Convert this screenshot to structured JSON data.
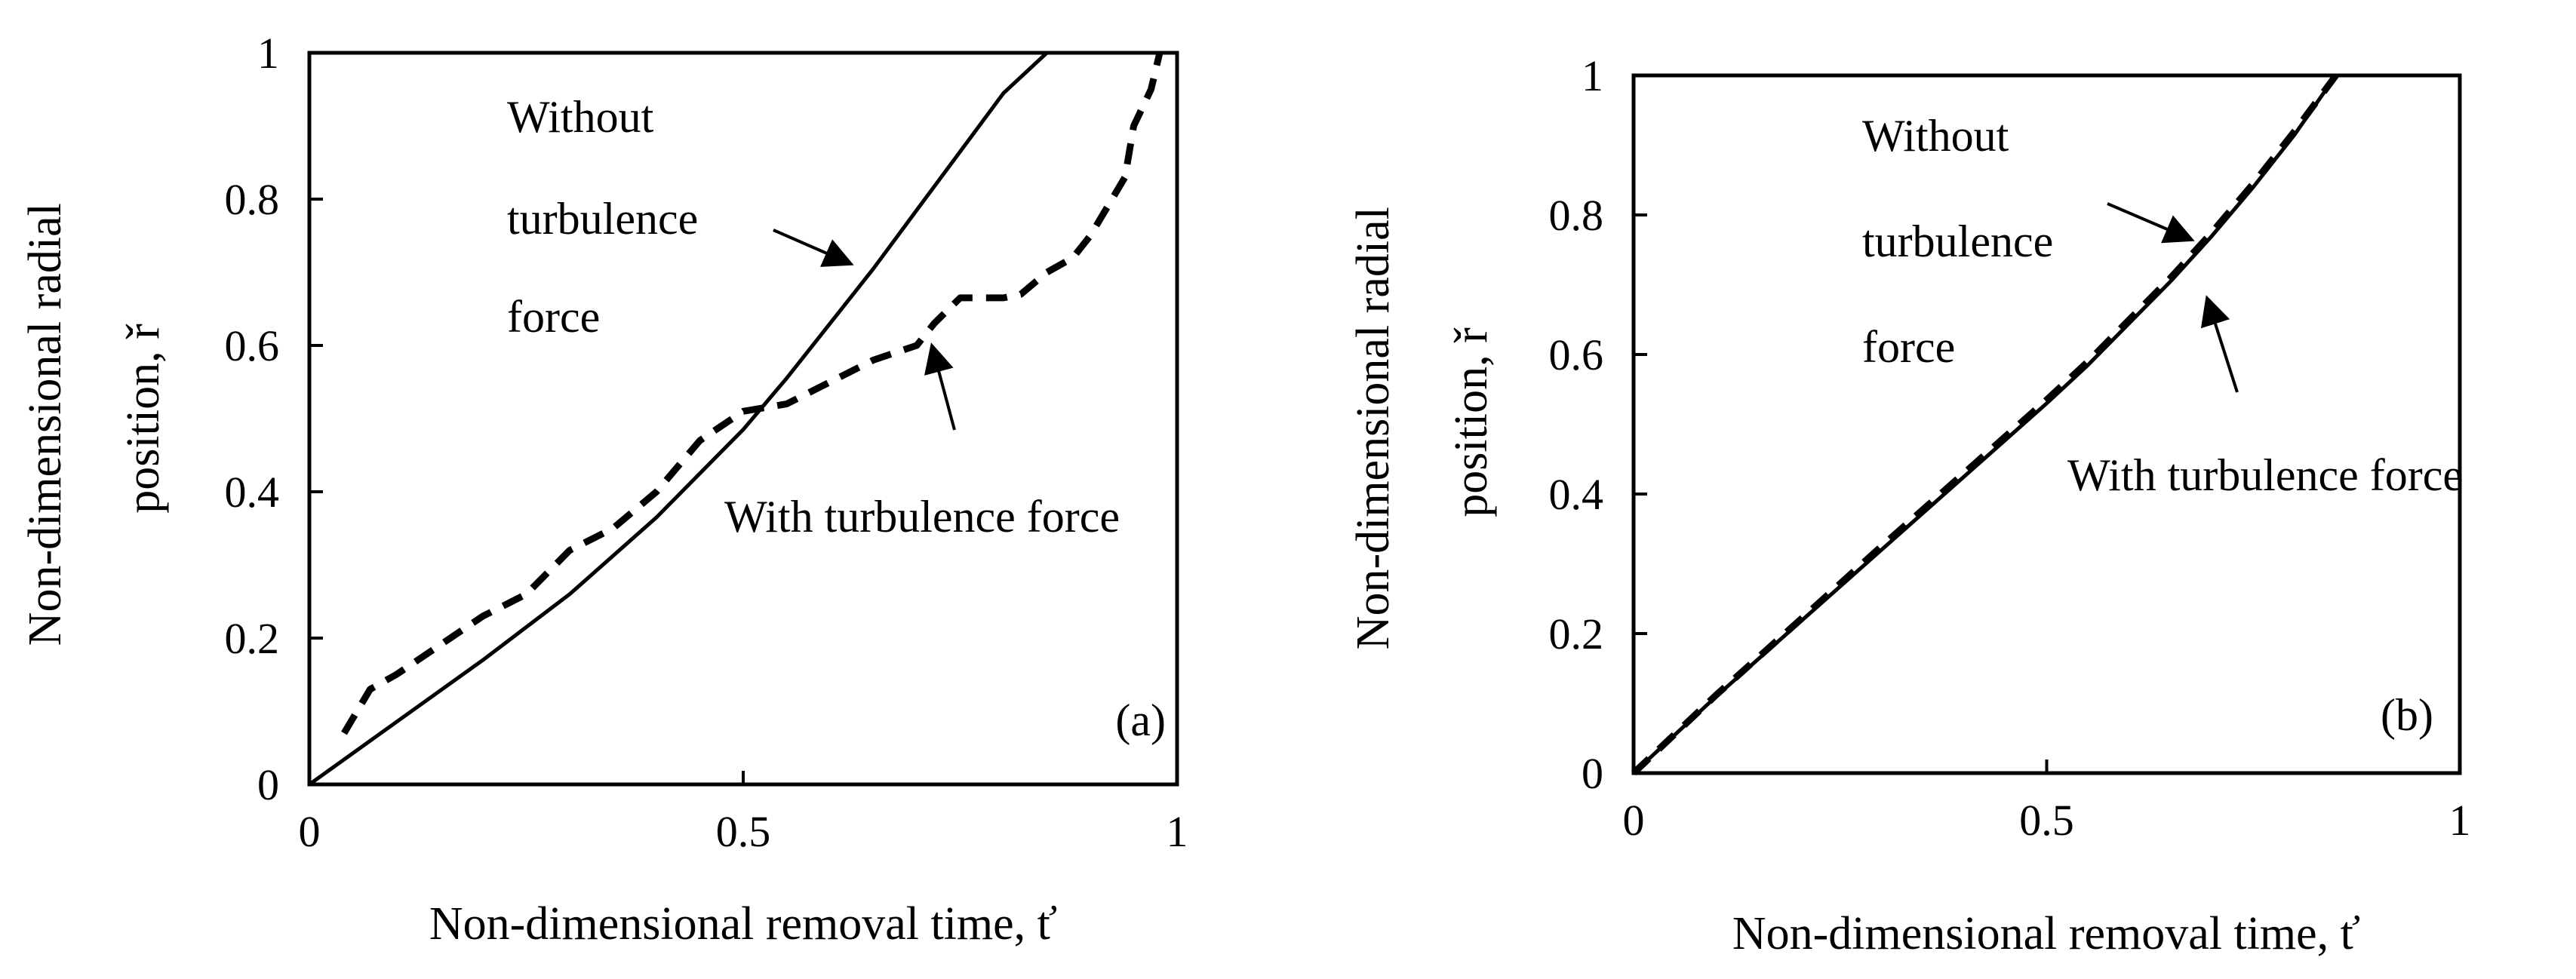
{
  "chart_data": [
    {
      "type": "line",
      "panel_label": "(a)",
      "xlabel": "Non-dimensional removal time, ť",
      "ylabel_lines": [
        "Non-dimensional radial",
        "position, ř"
      ],
      "xlim": [
        0,
        1
      ],
      "ylim": [
        0,
        1
      ],
      "xticks": [
        "0",
        "0.5",
        "1"
      ],
      "yticks": [
        "0",
        "0.2",
        "0.4",
        "0.6",
        "0.8",
        "1"
      ],
      "grid": false,
      "series": [
        {
          "style": "solid",
          "x": [
            0,
            0.1,
            0.2,
            0.3,
            0.4,
            0.5,
            0.55,
            0.6,
            0.65,
            0.7,
            0.75,
            0.8,
            0.85
          ],
          "y": [
            0,
            0.085,
            0.17,
            0.26,
            0.365,
            0.485,
            0.555,
            0.63,
            0.705,
            0.785,
            0.865,
            0.945,
            1.0
          ]
        },
        {
          "style": "dashed",
          "x": [
            0.04,
            0.07,
            0.1,
            0.15,
            0.2,
            0.25,
            0.3,
            0.35,
            0.4,
            0.45,
            0.5,
            0.55,
            0.6,
            0.65,
            0.7,
            0.72,
            0.75,
            0.8,
            0.82,
            0.85,
            0.88,
            0.9,
            0.92,
            0.94,
            0.95,
            0.97,
            0.98
          ],
          "y": [
            0.07,
            0.13,
            0.15,
            0.19,
            0.23,
            0.26,
            0.32,
            0.35,
            0.4,
            0.47,
            0.51,
            0.52,
            0.55,
            0.58,
            0.6,
            0.63,
            0.665,
            0.665,
            0.67,
            0.7,
            0.72,
            0.75,
            0.79,
            0.83,
            0.9,
            0.95,
            1.0
          ]
        }
      ],
      "annotations": [
        {
          "lines": [
            "Without",
            "turbulence",
            "force"
          ]
        },
        {
          "lines": [
            "With turbulence force"
          ]
        }
      ]
    },
    {
      "type": "line",
      "panel_label": "(b)",
      "xlabel": "Non-dimensional removal time, ť",
      "ylabel_lines": [
        "Non-dimensional radial",
        "position, ř"
      ],
      "xlim": [
        0,
        1
      ],
      "ylim": [
        0,
        1
      ],
      "xticks": [
        "0",
        "0.5",
        "1"
      ],
      "yticks": [
        "0",
        "0.2",
        "0.4",
        "0.6",
        "0.8",
        "1"
      ],
      "grid": false,
      "series": [
        {
          "style": "solid",
          "x": [
            0,
            0.1,
            0.2,
            0.3,
            0.4,
            0.5,
            0.55,
            0.6,
            0.65,
            0.7,
            0.75,
            0.8,
            0.85
          ],
          "y": [
            0,
            0.11,
            0.215,
            0.32,
            0.425,
            0.53,
            0.585,
            0.645,
            0.705,
            0.77,
            0.84,
            0.915,
            1.0
          ]
        },
        {
          "style": "dashed",
          "x": [
            0,
            0.1,
            0.2,
            0.3,
            0.4,
            0.5,
            0.55,
            0.6,
            0.65,
            0.7,
            0.75,
            0.8,
            0.85
          ],
          "y": [
            0,
            0.112,
            0.218,
            0.325,
            0.43,
            0.535,
            0.59,
            0.65,
            0.71,
            0.775,
            0.845,
            0.92,
            1.0
          ]
        }
      ],
      "annotations": [
        {
          "lines": [
            "Without",
            "turbulence",
            "force"
          ]
        },
        {
          "lines": [
            "With turbulence force"
          ]
        }
      ]
    }
  ]
}
